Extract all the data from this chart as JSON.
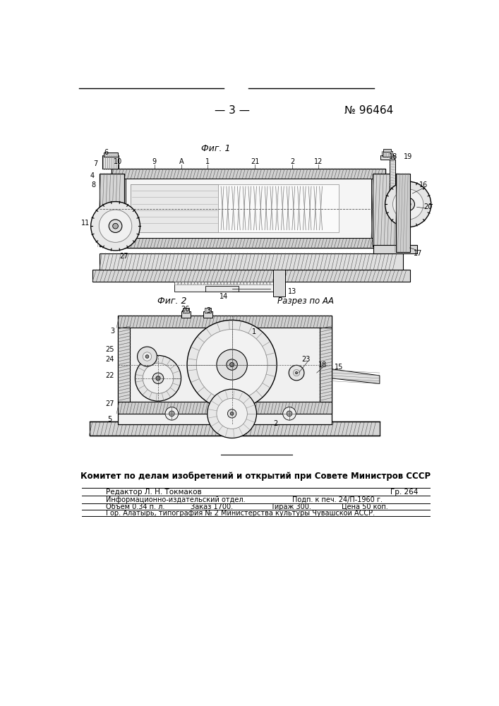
{
  "page_number": "— 3 —",
  "patent_number": "№ 96464",
  "fig1_label": "Фиг. 1",
  "fig2_label": "Фиг. 2",
  "section_label": "Разрез по АА",
  "committee_text": "Комитет по делам изобретений и открытий при Совете Министров СССР",
  "editor_line": "Редактор Л. Н. Токмаков",
  "gr_line": "Гр. 264",
  "info_line1_left": "Информационно-издательский отдел.",
  "info_line1_right": "Подп. к печ. 24/П-1960 г.",
  "info_line2_left": "Объем 0.34 п. л.",
  "info_line2_mid": "Заказ 1700.",
  "info_line2_mid2": "Тираж 300.",
  "info_line2_right": "Цена 50 коп.",
  "info_line3": "Гор. Алатырь, типография № 2 Министерства культуры Чувашской АССР.",
  "background_color": "#ffffff",
  "text_color": "#1a1a1a",
  "line_color": "#000000"
}
